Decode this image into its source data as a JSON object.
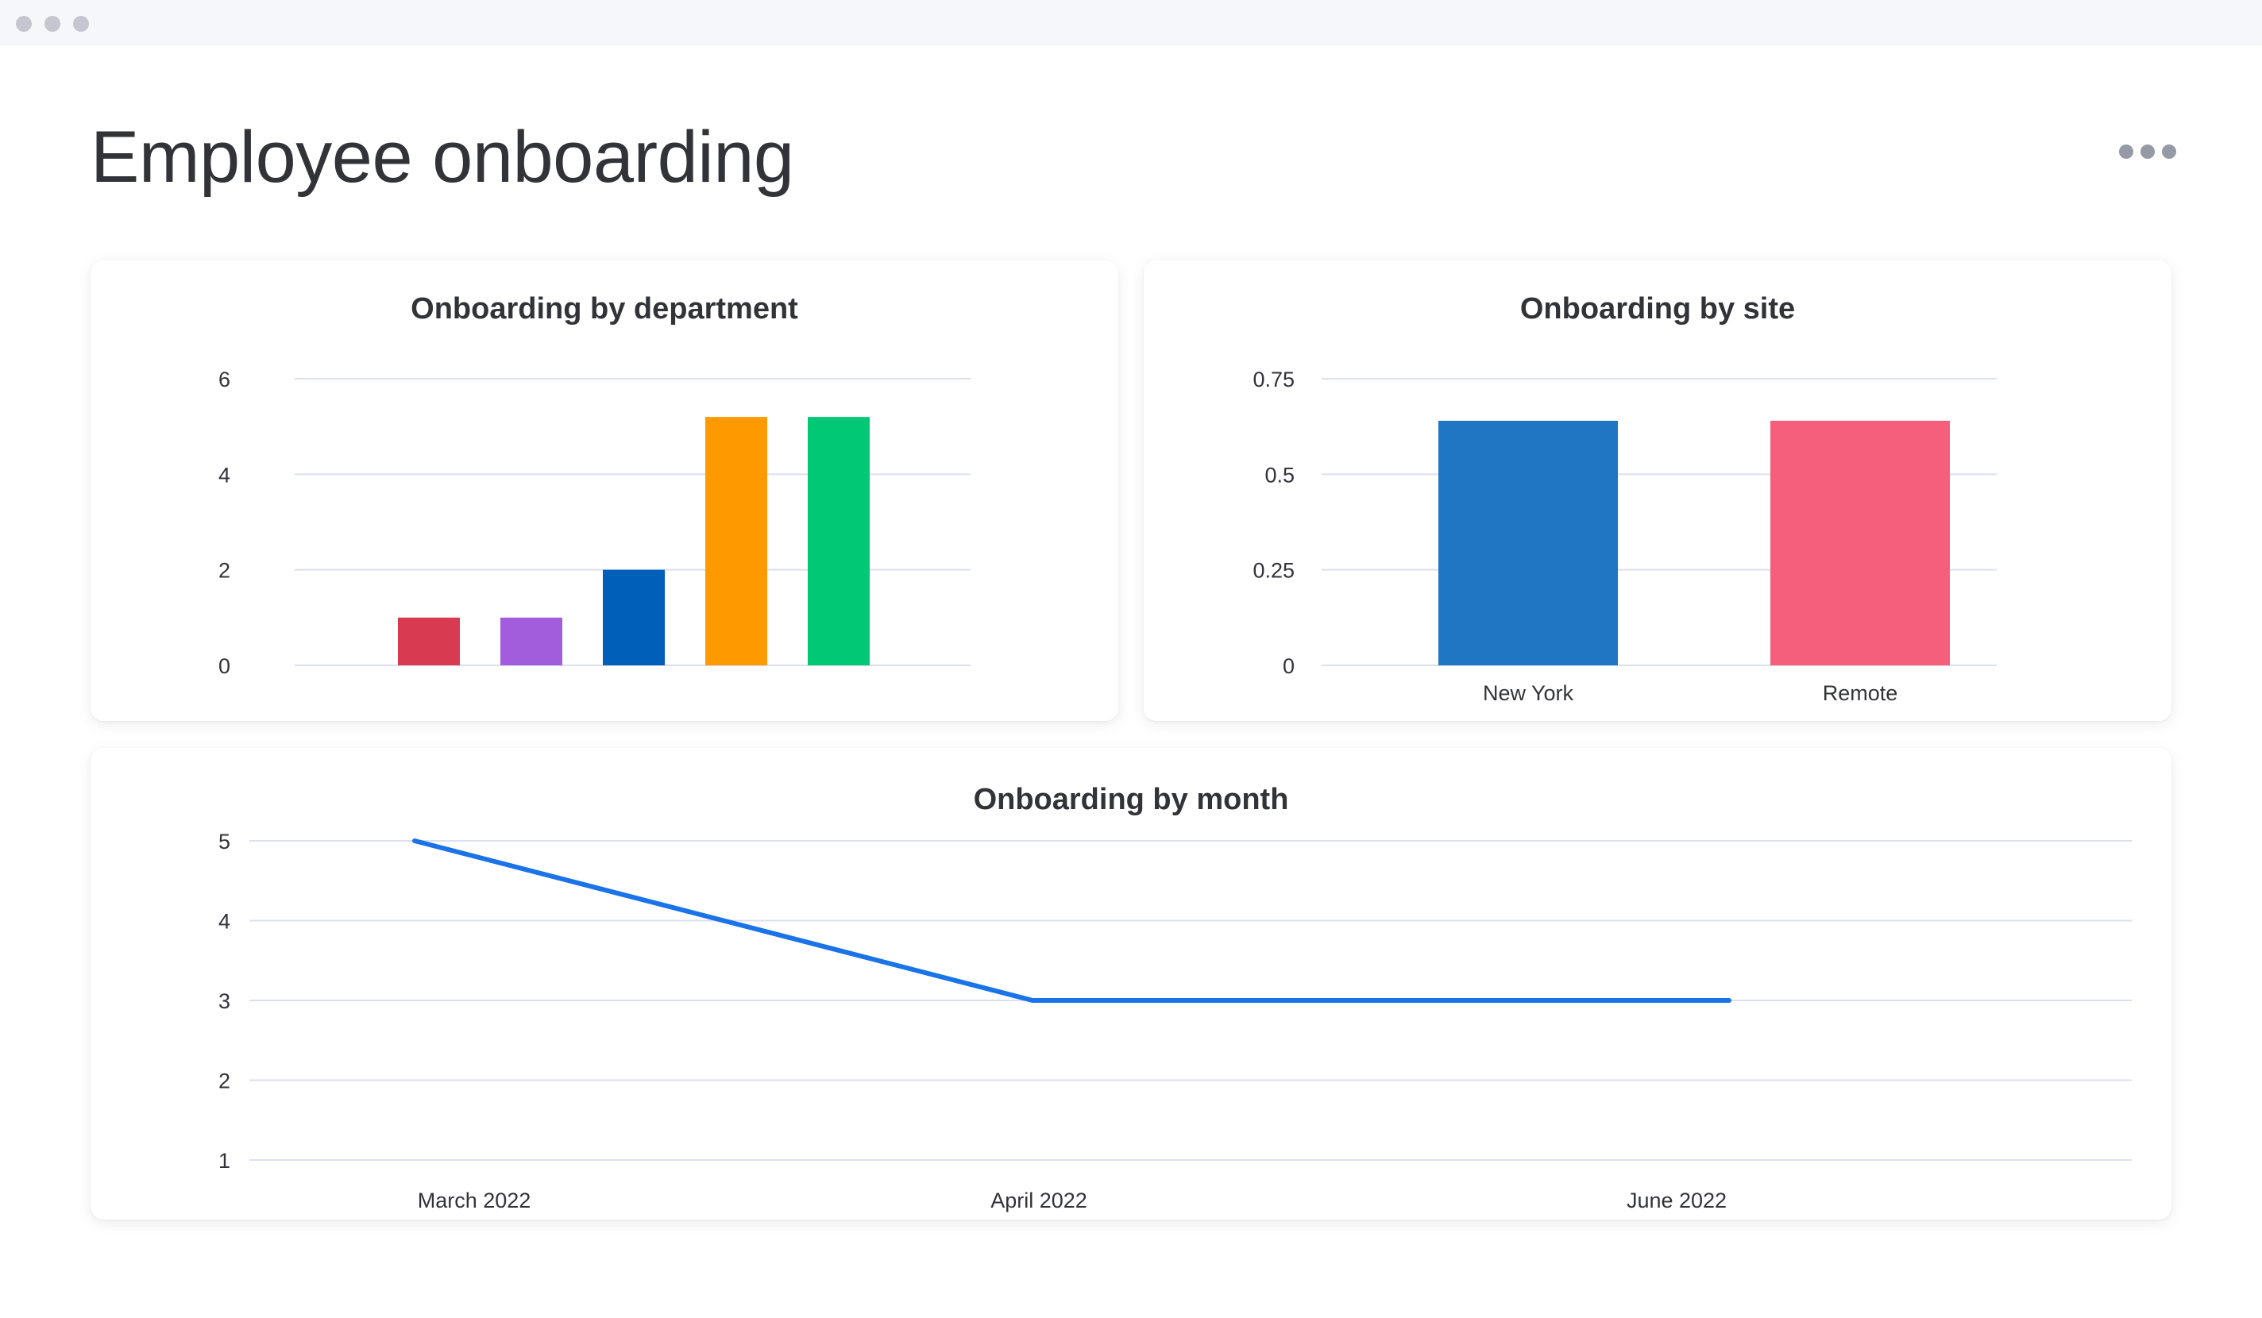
{
  "page": {
    "title": "Employee onboarding"
  },
  "colors": {
    "grid": "#dcdff0",
    "text": "#323338",
    "line": "#1a73e8"
  },
  "icons": {
    "menu": "more-horizontal-icon"
  },
  "chart_data": [
    {
      "id": "department",
      "type": "bar",
      "title": "Onboarding by department",
      "categories": [
        "",
        "",
        "",
        "",
        ""
      ],
      "values": [
        1,
        1,
        2,
        5.2,
        5.2
      ],
      "colors": [
        "#d83a52",
        "#a25ddc",
        "#0060b9",
        "#ff9900",
        "#00c875"
      ],
      "yticks": [
        "0",
        "2",
        "4",
        "6"
      ],
      "ylim": [
        0,
        6
      ],
      "grid": true,
      "xlabel": "",
      "ylabel": ""
    },
    {
      "id": "site",
      "type": "bar",
      "title": "Onboarding by site",
      "categories": [
        "New York",
        "Remote"
      ],
      "values": [
        0.64,
        0.64
      ],
      "colors": [
        "#1f76c2",
        "#f65f7c"
      ],
      "yticks": [
        "0",
        "0.25",
        "0.5",
        "0.75"
      ],
      "ylim": [
        0,
        0.75
      ],
      "grid": true,
      "xlabel": "",
      "ylabel": ""
    },
    {
      "id": "month",
      "type": "line",
      "title": "Onboarding by month",
      "categories": [
        "March 2022",
        "April 2022",
        "June 2022"
      ],
      "series": [
        {
          "values": [
            5,
            3,
            3
          ],
          "color": "#1a73e8"
        }
      ],
      "yticks": [
        "1",
        "2",
        "3",
        "4",
        "5"
      ],
      "ylim": [
        1,
        5
      ],
      "grid": true,
      "xlabel": "",
      "ylabel": ""
    }
  ]
}
